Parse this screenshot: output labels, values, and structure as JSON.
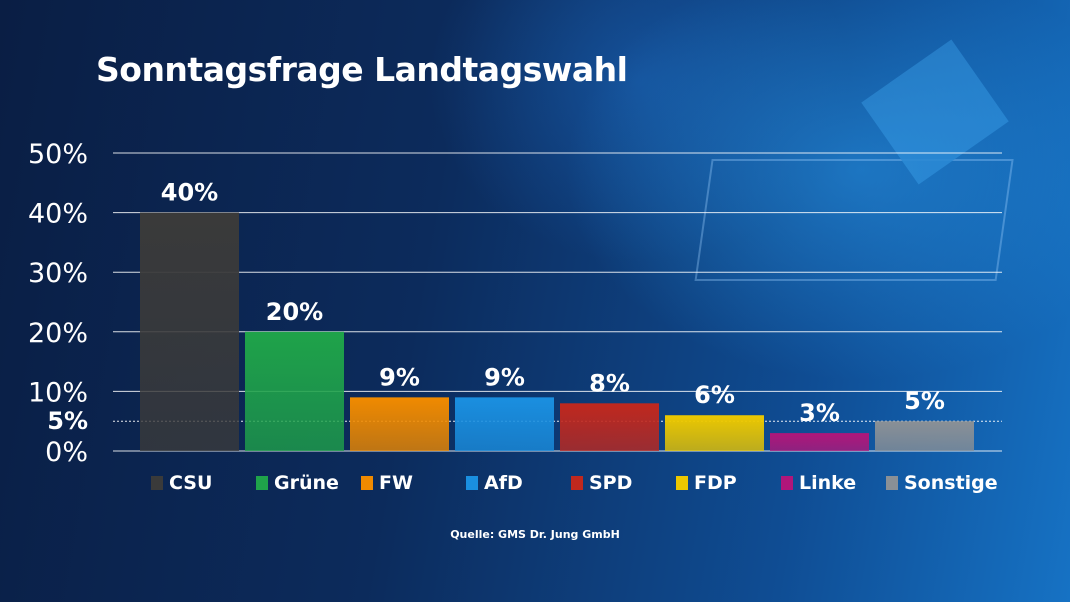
{
  "title": "Sonntagsfrage Landtagswahl",
  "source": "Quelle: GMS Dr. Jung GmbH",
  "chart_data": {
    "type": "bar",
    "title": "Sonntagsfrage Landtagswahl",
    "categories": [
      "CSU",
      "Grüne",
      "FW",
      "AfD",
      "SPD",
      "FDP",
      "Linke",
      "Sonstige"
    ],
    "values": [
      40,
      20,
      9,
      9,
      8,
      6,
      3,
      5
    ],
    "value_labels": [
      "40%",
      "20%",
      "9%",
      "9%",
      "8%",
      "6%",
      "3%",
      "5%"
    ],
    "colors": [
      "#3a3a3a",
      "#1fa34a",
      "#f08a00",
      "#1a8fe0",
      "#c0281e",
      "#ecc800",
      "#b0167a",
      "#8a9096"
    ],
    "ylim": [
      0,
      50
    ],
    "yticks": [
      0,
      10,
      20,
      30,
      40,
      50
    ],
    "ytick_labels": [
      "0%",
      "10%",
      "20%",
      "30%",
      "40%",
      "50%"
    ],
    "threshold": 5,
    "threshold_label": "5%",
    "grid": true,
    "legend": "bottom",
    "xlabel": "",
    "ylabel": ""
  }
}
